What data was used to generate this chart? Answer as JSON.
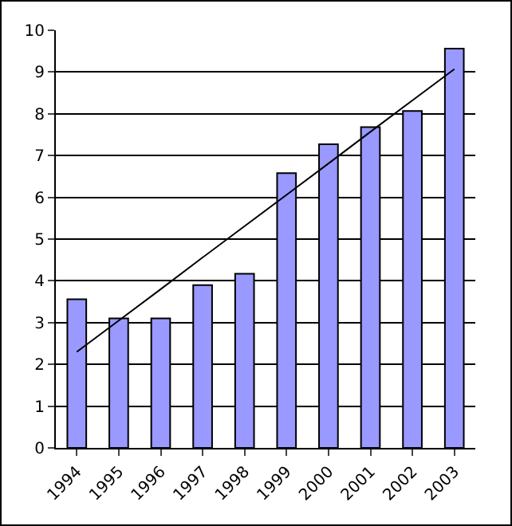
{
  "chart_data": {
    "type": "bar",
    "categories": [
      "1994",
      "1995",
      "1996",
      "1997",
      "1998",
      "1999",
      "2000",
      "2001",
      "2002",
      "2003"
    ],
    "series": [
      {
        "color": "#9999ff",
        "values": [
          3.56,
          3.1,
          3.1,
          3.9,
          4.17,
          6.58,
          7.27,
          7.68,
          8.07,
          9.56
        ]
      },
      {
        "type": "line",
        "color": "#000000",
        "values": [
          2.3,
          3.05,
          3.8,
          4.56,
          5.31,
          6.06,
          6.81,
          7.57,
          8.32,
          9.07
        ]
      }
    ],
    "ylim": [
      0,
      10
    ],
    "yticks": [
      0,
      1,
      2,
      3,
      4,
      5,
      6,
      7,
      8,
      9,
      10
    ],
    "grid": "y"
  }
}
